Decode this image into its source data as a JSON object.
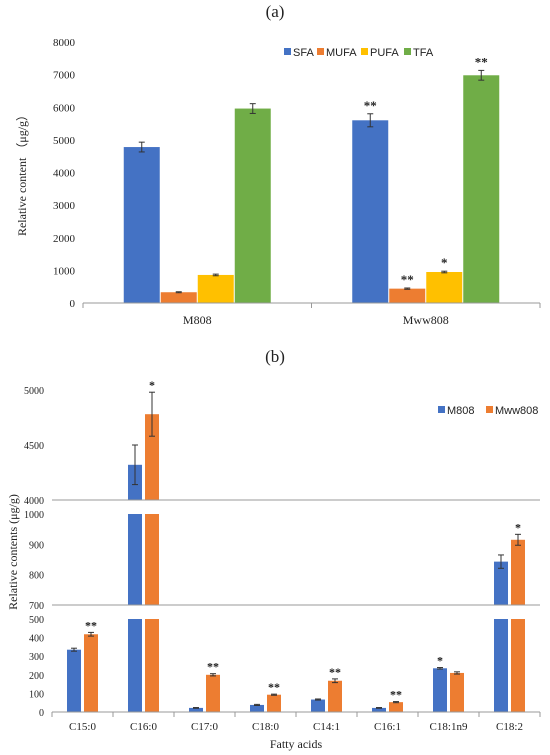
{
  "panels": [
    {
      "label": "(a)"
    },
    {
      "label": "(b)"
    }
  ],
  "colors": {
    "SFA": "#4472C4",
    "MUFA": "#ED7D31",
    "PUFA": "#FFC000",
    "TFA": "#70AD47",
    "M808": "#4472C4",
    "Mww808": "#ED7D31",
    "axis": "#999999",
    "error_bar": "#333333"
  },
  "chart_data": [
    {
      "type": "bar",
      "panel": "(a)",
      "categories": [
        "M808",
        "Mww808"
      ],
      "series": [
        {
          "name": "SFA",
          "values": [
            4780,
            5600
          ],
          "errors": [
            150,
            200
          ],
          "significance": [
            "",
            "**"
          ]
        },
        {
          "name": "MUFA",
          "values": [
            330,
            440
          ],
          "errors": [
            15,
            20
          ],
          "significance": [
            "",
            "**"
          ]
        },
        {
          "name": "PUFA",
          "values": [
            860,
            950
          ],
          "errors": [
            25,
            25
          ],
          "significance": [
            "",
            "*"
          ]
        },
        {
          "name": "TFA",
          "values": [
            5960,
            6980
          ],
          "errors": [
            150,
            150
          ],
          "significance": [
            "",
            "**"
          ]
        }
      ],
      "ylabel": "Relative content （μg/g）",
      "xlabel": "",
      "ylim": [
        0,
        8000
      ],
      "yticks": [
        "0",
        "1000",
        "2000",
        "3000",
        "4000",
        "5000",
        "6000",
        "7000",
        "8000"
      ],
      "legend_position": "top-right",
      "grid": false
    },
    {
      "type": "bar",
      "panel": "(b)",
      "categories": [
        "C15:0",
        "C16:0",
        "C17:0",
        "C18:0",
        "C14:1",
        "C16:1",
        "C18:1n9",
        "C18:2"
      ],
      "series": [
        {
          "name": "M808",
          "values": [
            335,
            4320,
            22,
            38,
            67,
            22,
            235,
            843
          ],
          "errors": [
            8,
            180,
            2,
            3,
            3,
            2,
            4,
            22
          ],
          "significance": [
            "",
            "",
            "",
            "",
            "",
            "",
            "*",
            ""
          ]
        },
        {
          "name": "Mww808",
          "values": [
            418,
            4780,
            200,
            93,
            168,
            53,
            210,
            915
          ],
          "errors": [
            10,
            200,
            6,
            3,
            10,
            3,
            6,
            18
          ],
          "significance": [
            "**",
            "*",
            "**",
            "**",
            "**",
            "**",
            "",
            "*"
          ]
        }
      ],
      "ylabel": "Relative contents (μg/g)",
      "xlabel": "Fatty acids",
      "broken_axis": true,
      "segments": [
        {
          "ylim": [
            0,
            500
          ],
          "yticks": [
            "0",
            "100",
            "200",
            "300",
            "400",
            "500"
          ]
        },
        {
          "ylim": [
            700,
            1000
          ],
          "yticks": [
            "700",
            "800",
            "900",
            "1000"
          ]
        },
        {
          "ylim": [
            4000,
            5000
          ],
          "yticks": [
            "4000",
            "4500",
            "5000"
          ]
        }
      ],
      "legend_position": "top-right",
      "grid": false
    }
  ]
}
